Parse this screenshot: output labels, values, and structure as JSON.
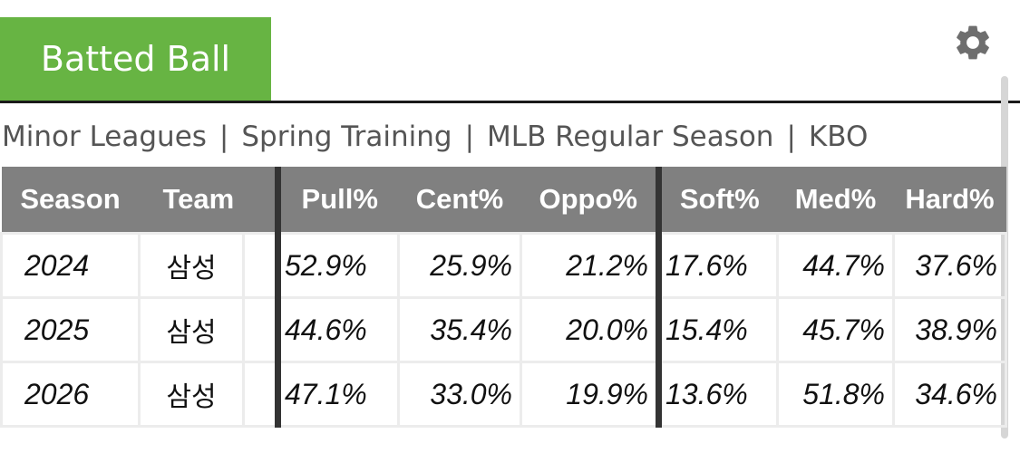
{
  "tab": {
    "label": "Batted Ball"
  },
  "icons": {
    "settings": "gear-icon"
  },
  "nav": {
    "items": [
      "Minor Leagues",
      "Spring Training",
      "MLB Regular Season",
      "KBO"
    ],
    "separator": "|"
  },
  "table": {
    "headers": [
      "Season",
      "Team",
      "",
      "Pull%",
      "Cent%",
      "Oppo%",
      "Soft%",
      "Med%",
      "Hard%"
    ],
    "rows": [
      [
        "2024",
        "삼성",
        "",
        "52.9%",
        "25.9%",
        "21.2%",
        "17.6%",
        "44.7%",
        "37.6%"
      ],
      [
        "2025",
        "삼성",
        "",
        "44.6%",
        "35.4%",
        "20.0%",
        "15.4%",
        "45.7%",
        "38.9%"
      ],
      [
        "2026",
        "삼성",
        "",
        "47.1%",
        "33.0%",
        "19.9%",
        "13.6%",
        "51.8%",
        "34.6%"
      ]
    ]
  },
  "colors": {
    "tab": "#67b443",
    "header": "#808080",
    "divider": "#333333"
  }
}
